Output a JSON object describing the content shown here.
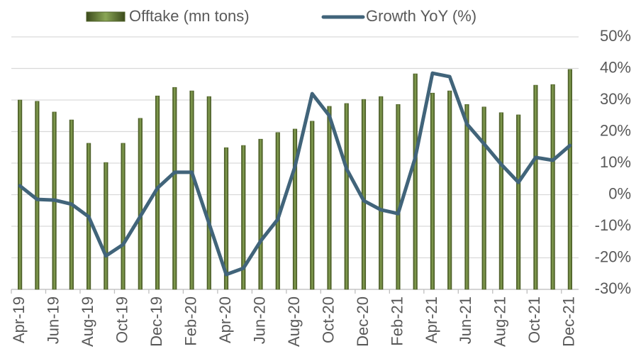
{
  "chart_data": {
    "type": "bar_line",
    "categories": [
      "Apr-19",
      null,
      "Jun-19",
      null,
      "Aug-19",
      null,
      "Oct-19",
      null,
      "Dec-19",
      null,
      "Feb-20",
      null,
      "Apr-20",
      null,
      "Jun-20",
      null,
      "Aug-20",
      null,
      "Oct-20",
      null,
      "Dec-20",
      null,
      "Feb-21",
      null,
      "Apr-21",
      null,
      "Jun-21",
      null,
      "Aug-21",
      null,
      "Oct-21",
      null,
      "Dec-21"
    ],
    "series": [
      {
        "name": "Offtake (mn tons)",
        "type": "bar",
        "color": "#4f6228",
        "values": [
          60.0,
          59.6,
          56.2,
          53.7,
          46.3,
          40.2,
          46.3,
          54.2,
          61.3,
          64.0,
          62.9,
          61.1,
          44.9,
          45.6,
          47.6,
          49.7,
          50.8,
          53.3,
          58.0,
          58.9,
          60.2,
          61.1,
          58.6,
          68.3,
          62.2,
          62.9,
          58.6,
          57.8,
          56.0,
          55.3,
          64.7,
          64.9,
          69.7
        ]
      },
      {
        "name": "Growth YoY (%)",
        "type": "line",
        "axis": "y2",
        "color": "#41647a",
        "values": [
          2.8,
          -1.5,
          -1.7,
          -3,
          -7,
          -19.4,
          -15.8,
          -6.9,
          2.1,
          7.1,
          7.1,
          -9.1,
          -25.3,
          -23.3,
          -14.7,
          -7.8,
          8.9,
          32,
          25,
          8.2,
          -1.9,
          -4.8,
          -6,
          11.8,
          38.5,
          37.4,
          22.4,
          16.1,
          9.6,
          3.9,
          11.8,
          10.9,
          15.6
        ]
      }
    ],
    "ylim": [
      0,
      80
    ],
    "y2lim": [
      -30,
      50
    ],
    "y2ticks": [
      {
        "value": -30,
        "label": "-30%"
      },
      {
        "value": -20,
        "label": "-20%"
      },
      {
        "value": -10,
        "label": "-10%"
      },
      {
        "value": 0,
        "label": "0%"
      },
      {
        "value": 10,
        "label": "10%"
      },
      {
        "value": 20,
        "label": "20%"
      },
      {
        "value": 30,
        "label": "30%"
      },
      {
        "value": 40,
        "label": "40%"
      },
      {
        "value": 50,
        "label": "50%"
      }
    ],
    "grid": true,
    "legend": "top"
  }
}
